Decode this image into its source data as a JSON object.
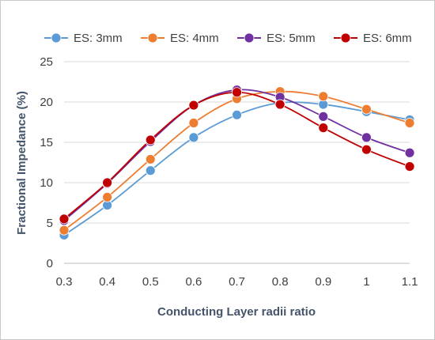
{
  "chart_data": {
    "type": "line",
    "title": "",
    "xlabel": "Conducting Layer radii ratio",
    "ylabel": "Fractional Impedance (%)",
    "x": [
      0.3,
      0.4,
      0.5,
      0.6,
      0.7,
      0.8,
      0.9,
      1,
      1.1
    ],
    "x_tick_labels": [
      "0.3",
      "0.4",
      "0.5",
      "0.6",
      "0.7",
      "0.8",
      "0.9",
      "1",
      "1.1"
    ],
    "ylim": [
      0,
      25
    ],
    "y_ticks": [
      0,
      5,
      10,
      15,
      20,
      25
    ],
    "y_tick_labels": [
      "0",
      "5",
      "10",
      "15",
      "20",
      "25"
    ],
    "grid": "horizontal major gridlines",
    "legend_position": "top",
    "line_style": "smoothed lines with circular markers",
    "series": [
      {
        "name": "ES: 3mm",
        "color": "#5b9bd5",
        "values": [
          3.5,
          7.2,
          11.5,
          15.6,
          18.4,
          19.9,
          19.7,
          18.8,
          17.8
        ]
      },
      {
        "name": "ES: 4mm",
        "color": "#ed7d31",
        "values": [
          4.1,
          8.2,
          12.9,
          17.4,
          20.4,
          21.3,
          20.7,
          19.1,
          17.4
        ]
      },
      {
        "name": "ES: 5mm",
        "color": "#7030a0",
        "values": [
          5.3,
          9.9,
          15.1,
          19.6,
          21.5,
          20.6,
          18.2,
          15.6,
          13.7
        ]
      },
      {
        "name": "ES: 6mm",
        "color": "#c00000",
        "values": [
          5.5,
          10.0,
          15.3,
          19.6,
          21.2,
          19.7,
          16.8,
          14.1,
          12.0
        ]
      }
    ]
  }
}
